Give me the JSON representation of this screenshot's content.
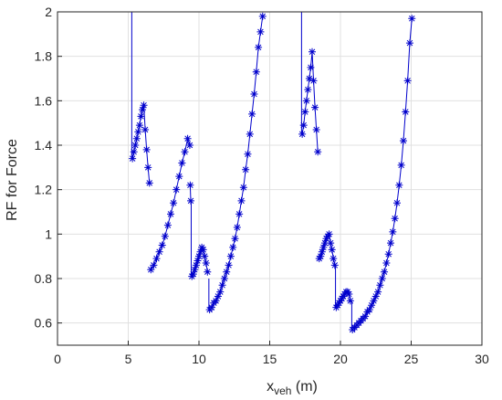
{
  "chart_data": {
    "type": "line",
    "title": "",
    "xlabel": {
      "main": "x",
      "sub": "veh",
      "unit": " (m)"
    },
    "ylabel": "RF for Force",
    "xlim": [
      0,
      30
    ],
    "ylim": [
      0.5,
      2
    ],
    "xticks": [
      0,
      5,
      10,
      15,
      20,
      25,
      30
    ],
    "yticks": [
      0.6,
      0.8,
      1.0,
      1.2,
      1.4,
      1.6,
      1.8,
      2.0
    ],
    "xtick_labels": [
      "0",
      "5",
      "10",
      "15",
      "20",
      "25",
      "30"
    ],
    "ytick_labels": [
      "0.6",
      "0.8",
      "1",
      "1.2",
      "1.4",
      "1.6",
      "1.8",
      "2"
    ],
    "grid": true,
    "colors": {
      "series": "#0000cc",
      "grid": "#e0e0e0",
      "axis": "#262626"
    },
    "series": [
      {
        "marker": "asterisk",
        "line_segments": [
          {
            "x": [
              5.25,
              5.25
            ],
            "y": [
              2.0,
              1.34
            ]
          },
          {
            "x": [
              9.45,
              9.45
            ],
            "y": [
              1.15,
              0.81
            ]
          },
          {
            "x": [
              10.7,
              10.7
            ],
            "y": [
              0.8,
              0.66
            ]
          },
          {
            "x": [
              17.25,
              17.25
            ],
            "y": [
              2.0,
              1.45
            ]
          },
          {
            "x": [
              19.65,
              19.65
            ],
            "y": [
              0.86,
              0.67
            ]
          },
          {
            "x": [
              20.8,
              20.8
            ],
            "y": [
              0.7,
              0.57
            ]
          }
        ],
        "segments": [
          {
            "x": [
              5.3,
              5.4,
              5.5,
              5.6,
              5.7,
              5.8,
              5.9,
              6.0,
              6.1,
              6.2,
              6.3,
              6.4,
              6.5
            ],
            "y": [
              1.34,
              1.37,
              1.4,
              1.43,
              1.46,
              1.49,
              1.53,
              1.56,
              1.58,
              1.47,
              1.38,
              1.3,
              1.23
            ]
          },
          {
            "x": [
              6.6,
              6.8,
              7.0,
              7.2,
              7.4,
              7.6,
              7.8,
              8.0,
              8.2,
              8.4,
              8.6,
              8.8,
              9.0,
              9.2,
              9.35
            ],
            "y": [
              0.84,
              0.86,
              0.89,
              0.92,
              0.95,
              0.99,
              1.04,
              1.09,
              1.14,
              1.2,
              1.26,
              1.32,
              1.37,
              1.43,
              1.4
            ]
          },
          {
            "x": [
              9.38,
              9.42
            ],
            "y": [
              1.22,
              1.15
            ]
          },
          {
            "x": [
              9.5,
              9.6,
              9.7,
              9.8,
              9.9,
              10.0,
              10.1,
              10.2,
              10.3,
              10.4,
              10.5,
              10.6
            ],
            "y": [
              0.81,
              0.82,
              0.84,
              0.86,
              0.88,
              0.9,
              0.92,
              0.94,
              0.93,
              0.9,
              0.87,
              0.83
            ]
          },
          {
            "x": [
              10.75,
              10.9,
              11.05,
              11.2,
              11.35,
              11.5,
              11.65,
              11.8,
              11.95,
              12.1,
              12.25,
              12.4,
              12.55,
              12.7,
              12.85,
              13.0,
              13.15,
              13.3,
              13.45,
              13.6,
              13.75,
              13.9,
              14.05,
              14.2,
              14.35,
              14.5
            ],
            "y": [
              0.66,
              0.67,
              0.69,
              0.7,
              0.72,
              0.74,
              0.77,
              0.8,
              0.83,
              0.86,
              0.9,
              0.94,
              0.98,
              1.03,
              1.09,
              1.15,
              1.21,
              1.29,
              1.36,
              1.45,
              1.54,
              1.63,
              1.73,
              1.84,
              1.91,
              1.98
            ]
          },
          {
            "x": [
              17.3,
              17.4,
              17.5,
              17.6,
              17.7,
              17.8,
              17.9,
              18.0,
              18.1,
              18.2,
              18.3,
              18.4
            ],
            "y": [
              1.45,
              1.49,
              1.55,
              1.6,
              1.65,
              1.7,
              1.75,
              1.82,
              1.69,
              1.57,
              1.47,
              1.37
            ]
          },
          {
            "x": [
              18.5,
              18.6,
              18.7,
              18.8,
              18.9,
              19.0,
              19.1,
              19.2,
              19.3,
              19.4,
              19.5,
              19.6
            ],
            "y": [
              0.89,
              0.9,
              0.92,
              0.94,
              0.96,
              0.98,
              0.99,
              1.0,
              0.96,
              0.93,
              0.89,
              0.86
            ]
          },
          {
            "x": [
              19.7,
              19.8,
              19.9,
              20.0,
              20.1,
              20.2,
              20.3,
              20.4,
              20.5,
              20.6,
              20.7
            ],
            "y": [
              0.67,
              0.68,
              0.69,
              0.7,
              0.71,
              0.72,
              0.73,
              0.74,
              0.74,
              0.73,
              0.7
            ]
          },
          {
            "x": [
              20.85,
              21.0,
              21.15,
              21.3,
              21.45,
              21.6,
              21.75,
              21.9,
              22.05,
              22.2,
              22.35,
              22.5,
              22.65,
              22.8,
              22.95,
              23.1,
              23.25,
              23.4,
              23.55,
              23.7,
              23.85,
              24.0,
              24.15,
              24.3,
              24.45,
              24.6,
              24.75,
              24.9,
              25.05
            ],
            "y": [
              0.57,
              0.58,
              0.59,
              0.6,
              0.61,
              0.62,
              0.63,
              0.65,
              0.66,
              0.68,
              0.7,
              0.72,
              0.74,
              0.77,
              0.8,
              0.83,
              0.87,
              0.91,
              0.96,
              1.01,
              1.07,
              1.14,
              1.22,
              1.31,
              1.42,
              1.55,
              1.69,
              1.86,
              1.97
            ]
          }
        ]
      }
    ]
  }
}
